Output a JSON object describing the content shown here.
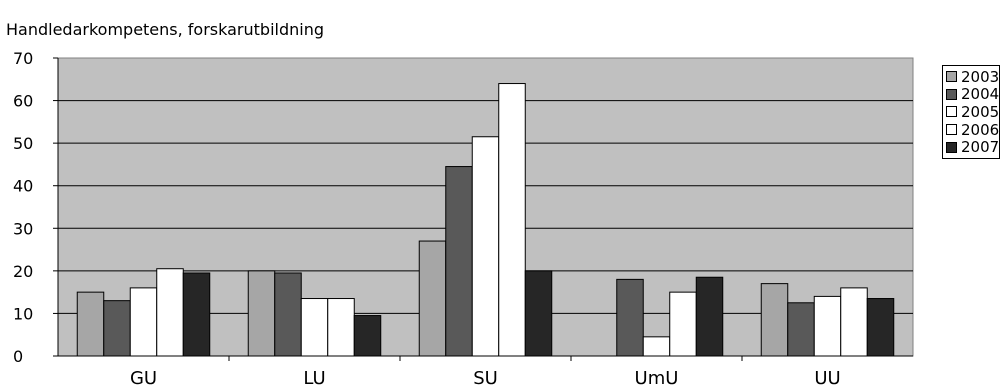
{
  "chart_data": {
    "type": "bar",
    "title": "Handledarkompetens, forskarutbildning",
    "xlabel": "",
    "ylabel": "",
    "categories": [
      "GU",
      "LU",
      "SU",
      "UmU",
      "UU"
    ],
    "ylim": [
      0,
      70
    ],
    "yticks": [
      0,
      10,
      20,
      30,
      40,
      50,
      60,
      70
    ],
    "grid": true,
    "legend_position": "right",
    "plot_background": "#c0c0c0",
    "series": [
      {
        "name": "2003",
        "color": "#a6a6a6",
        "values": [
          15,
          20,
          27,
          null,
          17
        ]
      },
      {
        "name": "2004",
        "color": "#595959",
        "values": [
          13,
          19.5,
          44.5,
          18,
          12.5
        ]
      },
      {
        "name": "2005",
        "color": "#ffffff",
        "values": [
          16,
          13.5,
          51.5,
          4.5,
          14
        ]
      },
      {
        "name": "2006",
        "color": "#ffffff",
        "values": [
          20.5,
          13.5,
          64,
          15,
          16
        ]
      },
      {
        "name": "2007",
        "color": "#262626",
        "values": [
          19.5,
          9.5,
          20,
          18.5,
          13.5
        ]
      }
    ]
  }
}
